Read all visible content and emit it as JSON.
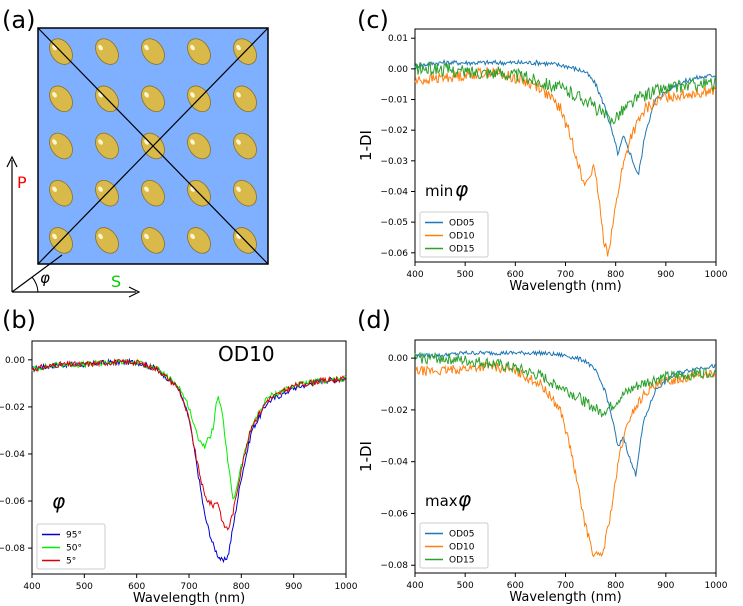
{
  "panel_labels": {
    "a": "(a)",
    "b": "(b)",
    "c": "(c)",
    "d": "(d)"
  },
  "schematic": {
    "axis_p": "P",
    "axis_s": "S",
    "angle_symbol": "φ",
    "colors": {
      "substrate": "#7fb0ff",
      "particle": "#d9b94a",
      "p_axis": "#ff0000",
      "s_axis": "#00cc00"
    },
    "grid_rows": 5,
    "grid_cols": 5
  },
  "chart_data": [
    {
      "id": "b",
      "type": "line",
      "annotation": "OD10",
      "legend_symbol": "φ",
      "xlabel": "Wavelength (nm)",
      "ylabel": "",
      "xlim": [
        400,
        1000
      ],
      "ylim": [
        -0.091,
        0.008
      ],
      "xticks": [
        400,
        500,
        600,
        700,
        800,
        900,
        1000
      ],
      "xtick_labels": [
        "400",
        "500",
        "600",
        "700",
        "800",
        "900",
        "1000"
      ],
      "yticks": [
        0.0,
        -0.02,
        -0.04,
        -0.06,
        -0.08
      ],
      "ytick_labels": [
        "0.00",
        "−0.02",
        "−0.04",
        "−0.06",
        "−0.08"
      ],
      "legend_position": "lower-left",
      "series": [
        {
          "name": "95°",
          "color": "#0000cc",
          "noise": 0.0012,
          "x": [
            400,
            450,
            500,
            550,
            600,
            640,
            680,
            700,
            715,
            730,
            745,
            755,
            765,
            775,
            785,
            800,
            820,
            850,
            900,
            950,
            1000
          ],
          "y": [
            -0.004,
            -0.002,
            -0.002,
            -0.001,
            -0.001,
            -0.004,
            -0.012,
            -0.025,
            -0.045,
            -0.066,
            -0.078,
            -0.083,
            -0.086,
            -0.083,
            -0.07,
            -0.05,
            -0.03,
            -0.018,
            -0.012,
            -0.009,
            -0.008
          ]
        },
        {
          "name": "50°",
          "color": "#00ee00",
          "noise": 0.0012,
          "x": [
            400,
            450,
            500,
            550,
            600,
            640,
            680,
            700,
            715,
            730,
            745,
            755,
            765,
            775,
            785,
            800,
            820,
            850,
            900,
            950,
            1000
          ],
          "y": [
            -0.004,
            -0.002,
            -0.002,
            -0.001,
            -0.001,
            -0.004,
            -0.011,
            -0.02,
            -0.032,
            -0.037,
            -0.03,
            -0.015,
            -0.025,
            -0.045,
            -0.06,
            -0.045,
            -0.028,
            -0.016,
            -0.011,
            -0.009,
            -0.008
          ]
        },
        {
          "name": "5°",
          "color": "#dd0000",
          "noise": 0.0012,
          "x": [
            400,
            450,
            500,
            550,
            600,
            640,
            680,
            700,
            715,
            730,
            745,
            755,
            765,
            775,
            785,
            800,
            820,
            850,
            900,
            950,
            1000
          ],
          "y": [
            -0.004,
            -0.002,
            -0.002,
            -0.001,
            -0.001,
            -0.004,
            -0.012,
            -0.025,
            -0.043,
            -0.058,
            -0.062,
            -0.06,
            -0.07,
            -0.072,
            -0.064,
            -0.046,
            -0.028,
            -0.017,
            -0.011,
            -0.009,
            -0.008
          ]
        }
      ]
    },
    {
      "id": "c",
      "type": "line",
      "annotation": "min",
      "annotation_symbol": "φ",
      "xlabel": "Wavelength (nm)",
      "ylabel": "1-DI",
      "xlim": [
        400,
        1000
      ],
      "ylim": [
        -0.063,
        0.013
      ],
      "xticks": [
        400,
        500,
        600,
        700,
        800,
        900,
        1000
      ],
      "xtick_labels": [
        "400",
        "500",
        "600",
        "700",
        "800",
        "900",
        "1000"
      ],
      "yticks": [
        0.01,
        0.0,
        -0.01,
        -0.02,
        -0.03,
        -0.04,
        -0.05,
        -0.06
      ],
      "ytick_labels": [
        "0.01",
        "0.00",
        "−0.01",
        "−0.02",
        "−0.03",
        "−0.04",
        "−0.05",
        "−0.06"
      ],
      "legend_position": "lower-left",
      "series": [
        {
          "name": "OD05",
          "color": "#1f77b4",
          "noise": 0.0008,
          "x": [
            400,
            450,
            500,
            550,
            600,
            650,
            700,
            740,
            760,
            780,
            795,
            805,
            815,
            830,
            845,
            860,
            880,
            920,
            960,
            1000
          ],
          "y": [
            0.001,
            0.002,
            0.002,
            0.002,
            0.002,
            0.002,
            0.001,
            -0.001,
            -0.005,
            -0.013,
            -0.022,
            -0.028,
            -0.022,
            -0.028,
            -0.035,
            -0.02,
            -0.01,
            -0.005,
            -0.003,
            -0.002
          ]
        },
        {
          "name": "OD10",
          "color": "#ff7f0e",
          "noise": 0.0018,
          "x": [
            400,
            450,
            500,
            550,
            600,
            650,
            690,
            710,
            725,
            735,
            745,
            755,
            765,
            775,
            785,
            795,
            810,
            830,
            860,
            900,
            950,
            1000
          ],
          "y": [
            -0.004,
            -0.003,
            -0.002,
            -0.001,
            -0.003,
            -0.006,
            -0.013,
            -0.022,
            -0.03,
            -0.038,
            -0.036,
            -0.032,
            -0.04,
            -0.055,
            -0.06,
            -0.05,
            -0.035,
            -0.022,
            -0.013,
            -0.009,
            -0.008,
            -0.007
          ]
        },
        {
          "name": "OD15",
          "color": "#2ca02c",
          "noise": 0.0022,
          "x": [
            400,
            450,
            500,
            550,
            600,
            650,
            700,
            740,
            770,
            790,
            810,
            840,
            880,
            920,
            960,
            1000
          ],
          "y": [
            0.0,
            0.0,
            -0.001,
            -0.001,
            -0.002,
            -0.004,
            -0.007,
            -0.01,
            -0.014,
            -0.017,
            -0.014,
            -0.01,
            -0.007,
            -0.006,
            -0.005,
            -0.005
          ]
        }
      ]
    },
    {
      "id": "d",
      "type": "line",
      "annotation": "max",
      "annotation_symbol": "φ",
      "xlabel": "Wavelength (nm)",
      "ylabel": "1-DI",
      "xlim": [
        400,
        1000
      ],
      "ylim": [
        -0.083,
        0.007
      ],
      "xticks": [
        400,
        500,
        600,
        700,
        800,
        900,
        1000
      ],
      "xtick_labels": [
        "400",
        "500",
        "600",
        "700",
        "800",
        "900",
        "1000"
      ],
      "yticks": [
        0.0,
        -0.02,
        -0.04,
        -0.06,
        -0.08
      ],
      "ytick_labels": [
        "0.00",
        "−0.02",
        "−0.04",
        "−0.06",
        "−0.08"
      ],
      "legend_position": "lower-left",
      "series": [
        {
          "name": "OD05",
          "color": "#1f77b4",
          "noise": 0.0008,
          "x": [
            400,
            450,
            500,
            550,
            600,
            650,
            700,
            740,
            760,
            780,
            795,
            805,
            815,
            830,
            840,
            855,
            880,
            920,
            960,
            1000
          ],
          "y": [
            0.001,
            0.001,
            0.002,
            0.002,
            0.002,
            0.002,
            0.001,
            -0.001,
            -0.005,
            -0.013,
            -0.025,
            -0.035,
            -0.03,
            -0.04,
            -0.045,
            -0.025,
            -0.012,
            -0.006,
            -0.004,
            -0.003
          ]
        },
        {
          "name": "OD10",
          "color": "#ff7f0e",
          "noise": 0.0018,
          "x": [
            400,
            450,
            500,
            550,
            600,
            650,
            690,
            710,
            725,
            740,
            755,
            765,
            775,
            790,
            810,
            830,
            860,
            900,
            950,
            1000
          ],
          "y": [
            -0.005,
            -0.005,
            -0.004,
            -0.003,
            -0.005,
            -0.01,
            -0.02,
            -0.035,
            -0.05,
            -0.065,
            -0.075,
            -0.077,
            -0.075,
            -0.06,
            -0.035,
            -0.022,
            -0.013,
            -0.009,
            -0.007,
            -0.006
          ]
        },
        {
          "name": "OD15",
          "color": "#2ca02c",
          "noise": 0.0022,
          "x": [
            400,
            450,
            500,
            550,
            600,
            650,
            700,
            740,
            770,
            790,
            810,
            840,
            880,
            920,
            960,
            1000
          ],
          "y": [
            0.0,
            0.0,
            -0.001,
            -0.002,
            -0.004,
            -0.007,
            -0.012,
            -0.017,
            -0.021,
            -0.019,
            -0.015,
            -0.011,
            -0.008,
            -0.007,
            -0.006,
            -0.005
          ]
        }
      ]
    }
  ]
}
